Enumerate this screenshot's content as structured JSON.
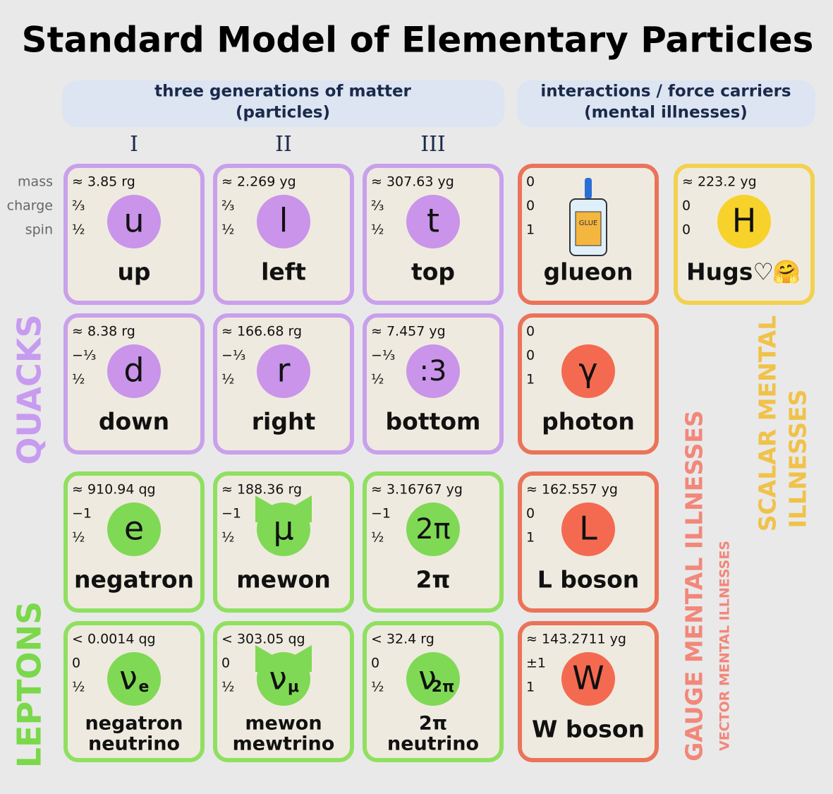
{
  "title": "Standard Model of Elementary Particles",
  "headers": {
    "matter": [
      "three generations of matter",
      "(particles)"
    ],
    "forces": [
      "interactions / force carriers",
      "(mental illnesses)"
    ]
  },
  "generations": [
    "I",
    "II",
    "III"
  ],
  "row_labels": [
    "mass",
    "charge",
    "spin"
  ],
  "side_labels": {
    "quacks": "QUACKS",
    "leptons": "LEPTONS",
    "gauge": "GAUGE MENTAL ILLNESSES",
    "vector": "VECTOR MENTAL ILLNESSES",
    "scalar": [
      "SCALAR MENTAL",
      "ILLNESSES"
    ]
  },
  "quarks": [
    [
      {
        "mass": "≈ 3.85 rg",
        "charge": "⅔",
        "spin": "½",
        "symbol": "u",
        "name": [
          "up"
        ]
      },
      {
        "mass": "≈ 2.269 yg",
        "charge": "⅔",
        "spin": "½",
        "symbol": "l",
        "name": [
          "left"
        ]
      },
      {
        "mass": "≈ 307.63 yg",
        "charge": "⅔",
        "spin": "½",
        "symbol": "t",
        "name": [
          "top"
        ]
      }
    ],
    [
      {
        "mass": "≈ 8.38 rg",
        "charge": "−⅓",
        "spin": "½",
        "symbol": "d",
        "name": [
          "down"
        ]
      },
      {
        "mass": "≈ 166.68 rg",
        "charge": "−⅓",
        "spin": "½",
        "symbol": "r",
        "name": [
          "right"
        ]
      },
      {
        "mass": "≈ 7.457 yg",
        "charge": "−⅓",
        "spin": "½",
        "symbol": ":3",
        "name": [
          "bottom"
        ]
      }
    ]
  ],
  "leptons": [
    [
      {
        "mass": "≈ 910.94 qg",
        "charge": "−1",
        "spin": "½",
        "symbol": "e",
        "name": [
          "negatron"
        ]
      },
      {
        "mass": "≈ 188.36 rg",
        "charge": "−1",
        "spin": "½",
        "symbol": "μ",
        "name": [
          "mewon"
        ]
      },
      {
        "mass": "≈ 3.16767 yg",
        "charge": "−1",
        "spin": "½",
        "symbol": "2π",
        "name": [
          "2π"
        ]
      }
    ],
    [
      {
        "mass": "< 0.0014 qg",
        "charge": "0",
        "spin": "½",
        "symbol": "ν",
        "sub": "e",
        "name": [
          "negatron",
          "neutrino"
        ]
      },
      {
        "mass": "< 303.05 qg",
        "charge": "0",
        "spin": "½",
        "symbol": "ν",
        "sub": "μ",
        "name": [
          "mewon",
          "mewtrino"
        ]
      },
      {
        "mass": "< 32.4 rg",
        "charge": "0",
        "spin": "½",
        "symbol": "ν",
        "sub": "2π",
        "name": [
          "2π",
          "neutrino"
        ]
      }
    ]
  ],
  "gauge_bosons": [
    {
      "mass": "0",
      "charge": "0",
      "spin": "1",
      "name": [
        "glueon"
      ],
      "bottle_label": "GLUE"
    },
    {
      "mass": "0",
      "charge": "0",
      "spin": "1",
      "symbol": "γ",
      "name": [
        "photon"
      ]
    },
    {
      "mass": "≈ 162.557 yg",
      "charge": "0",
      "spin": "1",
      "symbol": "L",
      "name": [
        "L boson"
      ]
    },
    {
      "mass": "≈ 143.2711 yg",
      "charge": "±1",
      "spin": "1",
      "symbol": "W",
      "name": [
        "W boson"
      ]
    }
  ],
  "scalar_bosons": [
    {
      "mass": "≈ 223.2 yg",
      "charge": "0",
      "spin": "0",
      "symbol": "H",
      "name": [
        "Hugs♡"
      ],
      "emoji": "🤗"
    }
  ]
}
